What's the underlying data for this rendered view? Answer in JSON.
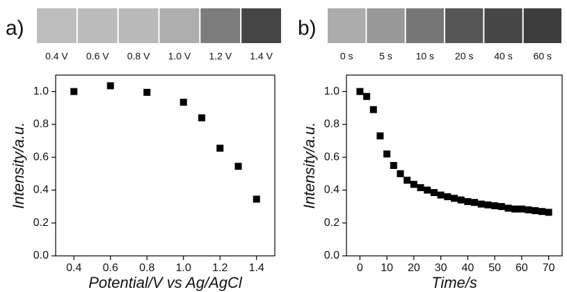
{
  "chart_data": [
    {
      "type": "scatter",
      "panel_label": "a)",
      "images": [
        {
          "label": "0.4 V",
          "color": "#bdbdbd"
        },
        {
          "label": "0.6 V",
          "color": "#bbbbbb"
        },
        {
          "label": "0.8 V",
          "color": "#b9b9b9"
        },
        {
          "label": "1.0 V",
          "color": "#adadad"
        },
        {
          "label": "1.2 V",
          "color": "#7c7c7c"
        },
        {
          "label": "1.4 V",
          "color": "#454545"
        }
      ],
      "x_label": "Potential/V vs Ag/AgCl",
      "y_label": "Intensity/a.u.",
      "x": [
        0.4,
        0.6,
        0.8,
        1.0,
        1.1,
        1.2,
        1.3,
        1.4
      ],
      "values": [
        1.0,
        1.035,
        0.995,
        0.935,
        0.84,
        0.655,
        0.545,
        0.345
      ],
      "color": "#000000",
      "xlim": [
        0.3,
        1.5
      ],
      "ylim": [
        0,
        1.1
      ],
      "xticks": [
        0.4,
        0.6,
        0.8,
        {
          "value": 1.0,
          "label": "1.0"
        },
        1.2,
        1.4
      ],
      "yticks": [
        {
          "value": 0,
          "label": "0.0"
        },
        0.2,
        0.4,
        0.6,
        0.8,
        {
          "value": 1.0,
          "label": "1.0"
        }
      ]
    },
    {
      "type": "scatter",
      "panel_label": "b)",
      "images": [
        {
          "label": "0 s",
          "color": "#acacac"
        },
        {
          "label": "5 s",
          "color": "#999999"
        },
        {
          "label": "10 s",
          "color": "#767676"
        },
        {
          "label": "20 s",
          "color": "#565656"
        },
        {
          "label": "40 s",
          "color": "#464646"
        },
        {
          "label": "60 s",
          "color": "#3d3d3d"
        }
      ],
      "x_label": "Time/s",
      "y_label": "Intensity/a.u.",
      "x": [
        0,
        2.5,
        5,
        7.5,
        10,
        12.5,
        15,
        17.5,
        20,
        22.5,
        25,
        27.5,
        30,
        32.5,
        35,
        37.5,
        40,
        42.5,
        45,
        47.5,
        50,
        52.5,
        55,
        57.5,
        60,
        62.5,
        65,
        67.5,
        70
      ],
      "values": [
        1.0,
        0.97,
        0.89,
        0.73,
        0.62,
        0.55,
        0.5,
        0.46,
        0.435,
        0.415,
        0.4,
        0.385,
        0.37,
        0.36,
        0.35,
        0.34,
        0.33,
        0.325,
        0.315,
        0.31,
        0.305,
        0.3,
        0.29,
        0.285,
        0.285,
        0.28,
        0.275,
        0.27,
        0.265
      ],
      "color": "#000000",
      "xlim": [
        -5,
        75
      ],
      "ylim": [
        0,
        1.1
      ],
      "xticks": [
        0,
        10,
        20,
        30,
        40,
        50,
        60,
        70
      ],
      "yticks": [
        {
          "value": 0,
          "label": "0.0"
        },
        0.2,
        0.4,
        0.6,
        0.8,
        {
          "value": 1.0,
          "label": "1.0"
        }
      ]
    }
  ]
}
